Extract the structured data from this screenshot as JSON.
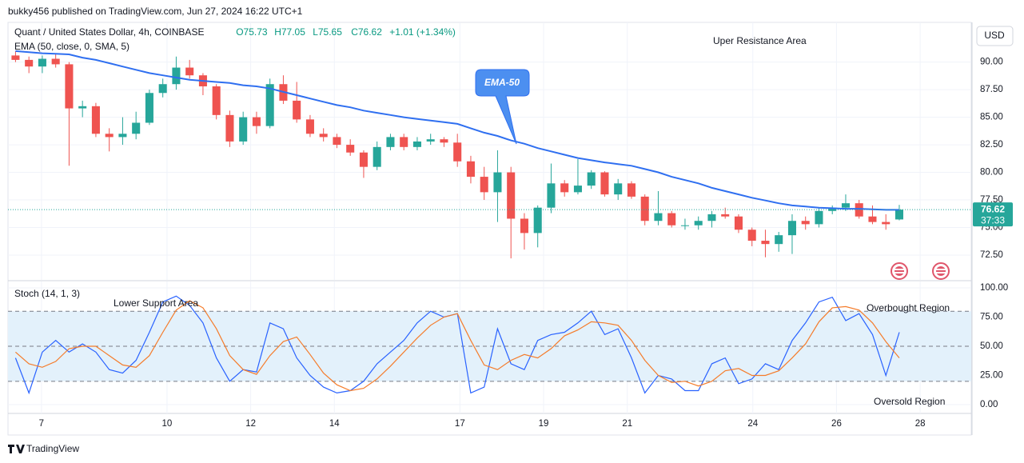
{
  "header": {
    "published": "bukky456 published on TradingView.com, Jun 27, 2024 16:22 UTC+1",
    "currency": "USD",
    "footer": "TradingView"
  },
  "chart_data": [
    {
      "type": "candlestick",
      "title": "Quant / United States Dollar, 4h, COINBASE",
      "ohlc_legend": [
        "O75.73",
        "H77.05",
        "L75.65",
        "C76.62",
        "+1.01 (+1.34%)"
      ],
      "annotations": [
        "Uper Resistance Area",
        "EMA-50"
      ],
      "up_color": "#26a69a",
      "down_color": "#ef5350",
      "x": [
        6.38,
        6.7,
        7.02,
        7.34,
        7.66,
        7.98,
        8.3,
        8.62,
        8.94,
        9.26,
        9.58,
        9.9,
        10.22,
        10.54,
        10.86,
        11.18,
        11.5,
        11.82,
        12.14,
        12.46,
        12.78,
        13.1,
        13.42,
        13.74,
        14.06,
        14.38,
        14.7,
        15.02,
        15.34,
        15.66,
        15.98,
        16.3,
        16.62,
        16.94,
        17.26,
        17.58,
        17.9,
        18.22,
        18.54,
        18.86,
        19.18,
        19.5,
        19.82,
        20.14,
        20.46,
        20.78,
        21.1,
        21.42,
        21.74,
        22.06,
        22.38,
        22.7,
        23.02,
        23.34,
        23.66,
        23.98,
        24.3,
        24.62,
        24.94,
        25.26,
        25.58,
        25.9,
        26.22,
        26.54,
        26.86,
        27.18,
        27.5
      ],
      "open": [
        90.6,
        90.2,
        89.6,
        90.3,
        89.8,
        85.8,
        86,
        83.5,
        83.2,
        83.5,
        84.5,
        87.2,
        88,
        89.5,
        88.8,
        87.8,
        85.2,
        82.8,
        85,
        84.2,
        88,
        86.5,
        84.8,
        83.5,
        83.2,
        82.5,
        81.8,
        80.5,
        82.3,
        83.2,
        82.3,
        82.8,
        83,
        82.7,
        81,
        79.6,
        78.2,
        80,
        75.8,
        74.5,
        76.8,
        79,
        78.2,
        78.8,
        80,
        78,
        79,
        77.8,
        75.6,
        76.3,
        75.2,
        75.2,
        75.6,
        76.2,
        76,
        74.8,
        73.8,
        73.5,
        74.3,
        75.6,
        75.3,
        76.5,
        76.8,
        77.2,
        76,
        75.5,
        75.73
      ],
      "high": [
        91,
        90.5,
        90.6,
        90.8,
        90,
        86.5,
        86.3,
        84,
        85,
        85.5,
        87.5,
        88.5,
        90.5,
        90.2,
        89,
        88,
        85.6,
        85.5,
        85.5,
        88.5,
        88.8,
        88.2,
        85.2,
        84,
        83.5,
        83,
        82,
        82.8,
        83.5,
        83.5,
        83.2,
        83.5,
        83.2,
        83.5,
        81.5,
        80.5,
        82,
        80.5,
        76.3,
        77,
        80.8,
        79.3,
        81.2,
        80.2,
        80.1,
        79.4,
        79.2,
        78,
        78.3,
        76.5,
        75.8,
        76,
        76.5,
        76.8,
        76.2,
        75,
        74.8,
        74.6,
        76.2,
        76,
        76.8,
        77,
        78,
        77.5,
        77,
        76.2,
        77.05
      ],
      "low": [
        90,
        89,
        89,
        89.5,
        80.6,
        85,
        83.2,
        81.9,
        82.5,
        83,
        84.3,
        86.8,
        87.5,
        88.5,
        87,
        84.8,
        82.3,
        82.5,
        83.5,
        84,
        86.2,
        84.5,
        83.2,
        82.8,
        82.2,
        81.5,
        79.5,
        80.2,
        82,
        82,
        82,
        82.5,
        82.3,
        80.5,
        79,
        77.5,
        75.5,
        72.2,
        73,
        73.2,
        76.3,
        77.8,
        78,
        78.5,
        77.8,
        77.5,
        77.6,
        75.2,
        75.2,
        75,
        74.8,
        74.8,
        75,
        75.8,
        74.5,
        73.3,
        72.3,
        72.8,
        72.6,
        74.8,
        75,
        76.2,
        76.5,
        75.8,
        75.3,
        74.8,
        75.65
      ],
      "close": [
        90.2,
        89.6,
        90.3,
        89.8,
        85.8,
        86,
        83.5,
        83.2,
        83.5,
        84.5,
        87.2,
        88,
        89.5,
        88.8,
        87.8,
        85.2,
        82.8,
        85,
        84.2,
        88,
        86.5,
        84.8,
        83.5,
        83.2,
        82.5,
        81.8,
        80.5,
        82.3,
        83.2,
        82.3,
        82.8,
        83,
        82.7,
        81,
        79.6,
        78.2,
        80,
        75.8,
        74.5,
        76.8,
        79,
        78.2,
        78.8,
        80,
        78,
        79,
        77.8,
        75.6,
        76.3,
        75.2,
        75.2,
        75.6,
        76.2,
        76,
        74.8,
        73.8,
        73.5,
        74.3,
        75.6,
        75.3,
        76.5,
        76.8,
        77.2,
        76,
        75.5,
        75.3,
        76.62
      ],
      "series": [
        {
          "name": "EMA (50, close, 0, SMA, 5)",
          "color": "#2f6ff0",
          "values": [
            91.0,
            90.9,
            90.8,
            90.75,
            90.7,
            90.4,
            90.2,
            89.9,
            89.6,
            89.3,
            89.0,
            88.8,
            88.6,
            88.4,
            88.3,
            88.2,
            88.1,
            87.9,
            87.8,
            87.6,
            87.3,
            87.0,
            86.7,
            86.4,
            86.1,
            85.9,
            85.6,
            85.4,
            85.2,
            85.0,
            84.85,
            84.7,
            84.55,
            84.4,
            84.0,
            83.6,
            83.3,
            82.9,
            82.6,
            82.2,
            81.9,
            81.6,
            81.3,
            81.1,
            80.9,
            80.75,
            80.6,
            80.3,
            80.0,
            79.6,
            79.3,
            79.0,
            78.6,
            78.3,
            78.0,
            77.7,
            77.45,
            77.2,
            77.0,
            76.9,
            76.8,
            76.75,
            76.7,
            76.7,
            76.65,
            76.6,
            76.6
          ]
        }
      ],
      "last_price": {
        "value": 76.62,
        "label": "76.62"
      },
      "countdown": "37:33",
      "xlim": [
        6.2,
        29.22
      ],
      "xticks": [
        7,
        10,
        12,
        14,
        17,
        19,
        21,
        24,
        26,
        28
      ],
      "ylim": [
        70.25,
        93.6
      ],
      "yticks": [
        {
          "value": 72.5,
          "label": "72.50"
        },
        {
          "value": 75,
          "label": "75.00"
        },
        {
          "value": 77.5,
          "label": "77.50"
        },
        {
          "value": 80,
          "label": "80.00"
        },
        {
          "value": 82.5,
          "label": "82.50"
        },
        {
          "value": 85,
          "label": "85.00"
        },
        {
          "value": 87.5,
          "label": "87.50"
        },
        {
          "value": 90,
          "label": "90.00"
        }
      ],
      "grid": true
    },
    {
      "type": "line",
      "title": "Stoch (14, 1, 3)",
      "annotations": [
        "Lower Support Area",
        "Overbought Region",
        "Oversold Region"
      ],
      "series": [
        {
          "color": "#2962ff",
          "values": [
            40,
            10,
            45,
            55,
            45,
            52,
            45,
            30,
            27,
            38,
            62,
            88,
            93,
            85,
            70,
            40,
            20,
            30,
            28,
            70,
            65,
            40,
            25,
            15,
            10,
            12,
            20,
            35,
            45,
            55,
            70,
            80,
            75,
            78,
            10,
            15,
            65,
            35,
            30,
            55,
            60,
            62,
            70,
            80,
            60,
            65,
            40,
            10,
            25,
            22,
            12,
            12,
            35,
            40,
            18,
            22,
            35,
            30,
            55,
            70,
            88,
            92,
            72,
            78,
            60,
            25,
            62
          ]
        },
        {
          "color": "#f57c2b",
          "values": [
            45,
            35,
            32,
            37,
            48,
            50,
            50,
            42,
            34,
            32,
            42,
            62,
            81,
            89,
            83,
            65,
            42,
            30,
            26,
            42,
            54,
            58,
            43,
            27,
            17,
            12,
            14,
            22,
            33,
            45,
            57,
            68,
            75,
            78,
            55,
            34,
            30,
            38,
            43,
            40,
            48,
            59,
            64,
            71,
            70,
            68,
            55,
            38,
            25,
            19,
            20,
            16,
            20,
            29,
            31,
            25,
            25,
            29,
            40,
            52,
            71,
            83,
            84,
            81,
            70,
            54,
            40
          ]
        }
      ],
      "band": [
        20,
        80
      ],
      "hlines": [
        80,
        50,
        20
      ],
      "band_color": "#e3f1fb",
      "ylim": [
        -7.5,
        105.5
      ],
      "yticks": [
        {
          "value": 0,
          "label": "0.00"
        },
        {
          "value": 25,
          "label": "25.00"
        },
        {
          "value": 50,
          "label": "50.00"
        },
        {
          "value": 75,
          "label": "75.00"
        },
        {
          "value": 100,
          "label": "100.00"
        }
      ],
      "grid": true
    }
  ]
}
